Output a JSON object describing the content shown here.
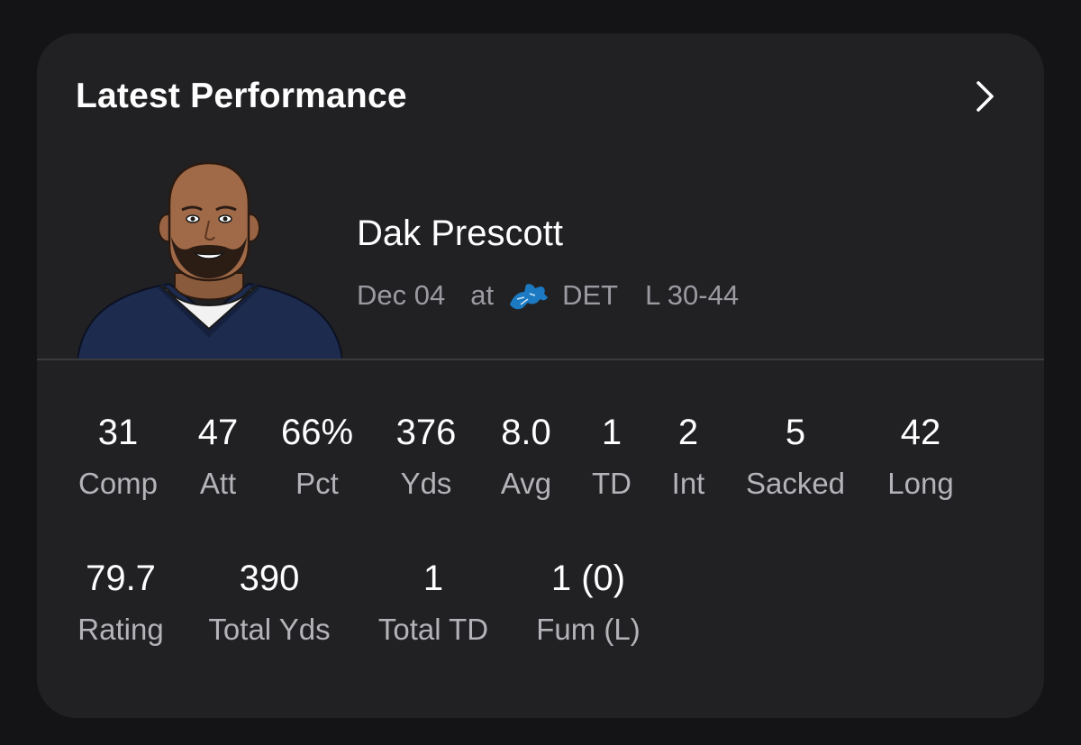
{
  "card": {
    "title": "Latest Performance",
    "open_icon": "chevron-right-icon"
  },
  "player": {
    "name": "Dak Prescott",
    "avatar_icon": "player-avatar-illustration"
  },
  "game": {
    "date": "Dec 04",
    "location": "at",
    "opponent_logo": "detroit-lions-logo",
    "opponent": "DET",
    "result": "L 30-44"
  },
  "colors": {
    "background": "#141416",
    "card": "#212124",
    "primary_text": "#ffffff",
    "secondary_text": "#9a9aa0",
    "lions_blue": "#1b7ac2"
  },
  "stats_row1": [
    {
      "value": "31",
      "label": "Comp"
    },
    {
      "value": "47",
      "label": "Att"
    },
    {
      "value": "66%",
      "label": "Pct"
    },
    {
      "value": "376",
      "label": "Yds"
    },
    {
      "value": "8.0",
      "label": "Avg"
    },
    {
      "value": "1",
      "label": "TD"
    },
    {
      "value": "2",
      "label": "Int"
    },
    {
      "value": "5",
      "label": "Sacked"
    },
    {
      "value": "42",
      "label": "Long"
    }
  ],
  "stats_row2": [
    {
      "value": "79.7",
      "label": "Rating"
    },
    {
      "value": "390",
      "label": "Total Yds"
    },
    {
      "value": "1",
      "label": "Total TD"
    },
    {
      "value": "1 (0)",
      "label": "Fum (L)"
    }
  ]
}
